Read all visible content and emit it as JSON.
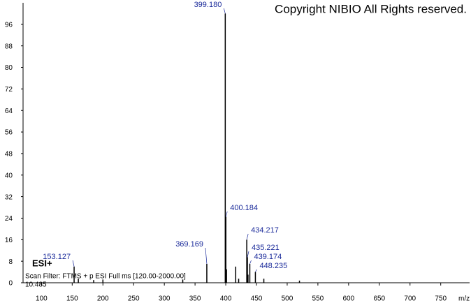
{
  "chart_data": {
    "type": "spectrum",
    "copyright": "Copyright NIBIO All Rights reserved.",
    "ionization": "ESI+",
    "scan_filter": "Scan Filter: FTMS + p ESI Full ms [120.00-2000.00]",
    "retention_time": "10.485",
    "x_label": "m/z",
    "xlim": [
      70,
      797
    ],
    "ylim": [
      0,
      104
    ],
    "xticks": [
      100,
      150,
      200,
      250,
      300,
      350,
      400,
      450,
      500,
      550,
      600,
      650,
      700,
      750
    ],
    "yticks": [
      0,
      8,
      16,
      24,
      32,
      40,
      48,
      56,
      64,
      72,
      80,
      88,
      96
    ],
    "color": "#000000",
    "label_color": "#1a2a9a",
    "x": [
      153.127,
      160,
      185,
      200,
      330,
      369.169,
      399.18,
      400.184,
      401.2,
      416.2,
      421,
      434.217,
      435.221,
      436.2,
      439.174,
      448.235,
      462,
      520
    ],
    "values": [
      6,
      1.5,
      1,
      1.2,
      1.2,
      7,
      100,
      24.5,
      5,
      6,
      1.5,
      16,
      9.5,
      3,
      7,
      4,
      1.5,
      0.8
    ],
    "peak_labels": [
      "153.127",
      null,
      null,
      null,
      null,
      "369.169",
      "399.180",
      "400.184",
      null,
      null,
      null,
      "434.217",
      "435.221",
      null,
      "439.174",
      "448.235",
      null,
      null
    ]
  }
}
